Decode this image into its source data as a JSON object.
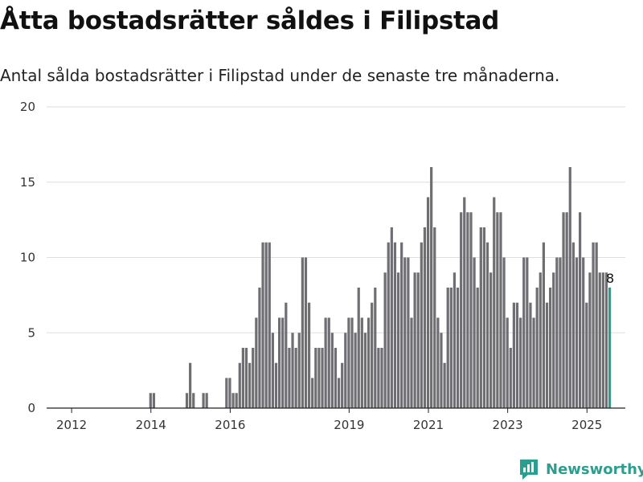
{
  "title": "Åtta bostadsrätter såldes i Filipstad",
  "subtitle": "Antal sålda bostadsrätter i Filipstad under de senaste tre månaderna.",
  "brand": {
    "name": "Newsworthy",
    "color": "#2b9f8f"
  },
  "chart_data": {
    "type": "bar",
    "title": "Åtta bostadsrätter såldes i Filipstad",
    "subtitle": "Antal sålda bostadsrätter i Filipstad under de senaste tre månaderna.",
    "xlabel": "",
    "ylabel": "",
    "ylim": [
      0,
      20
    ],
    "yticks": [
      0,
      5,
      10,
      15,
      20
    ],
    "xticks": [
      "2012",
      "2014",
      "2016",
      "2019",
      "2021",
      "2023",
      "2025"
    ],
    "grid": "horizontal",
    "bar_color": "#6e6e73",
    "highlight_color": "#2b9f8f",
    "highlight_label": "8",
    "x_start": "2012-01",
    "series": [
      {
        "values": [
          0,
          0,
          0,
          0,
          0,
          0,
          0,
          0,
          0,
          0,
          0,
          0,
          0,
          0,
          0,
          0,
          0,
          0,
          0,
          0,
          0,
          0,
          0,
          0,
          1,
          1,
          0,
          0,
          0,
          0,
          0,
          0,
          0,
          0,
          0,
          1,
          3,
          1,
          0,
          0,
          1,
          1,
          0,
          0,
          0,
          0,
          0,
          2,
          2,
          1,
          1,
          3,
          4,
          4,
          3,
          4,
          6,
          8,
          11,
          11,
          11,
          5,
          3,
          6,
          6,
          7,
          4,
          5,
          4,
          5,
          10,
          10,
          7,
          2,
          4,
          4,
          4,
          6,
          6,
          5,
          4,
          2,
          3,
          5,
          6,
          6,
          5,
          8,
          6,
          5,
          6,
          7,
          8,
          4,
          4,
          9,
          11,
          12,
          11,
          9,
          11,
          10,
          10,
          6,
          9,
          9,
          11,
          12,
          14,
          16,
          12,
          6,
          5,
          3,
          8,
          8,
          9,
          8,
          13,
          14,
          13,
          13,
          10,
          8,
          12,
          12,
          11,
          9,
          14,
          13,
          13,
          10,
          6,
          4,
          7,
          7,
          6,
          10,
          10,
          7,
          6,
          8,
          9,
          11,
          7,
          8,
          9,
          10,
          10,
          13,
          13,
          16,
          11,
          10,
          13,
          10,
          7,
          9,
          11,
          11,
          9,
          9,
          9,
          8
        ]
      }
    ]
  }
}
